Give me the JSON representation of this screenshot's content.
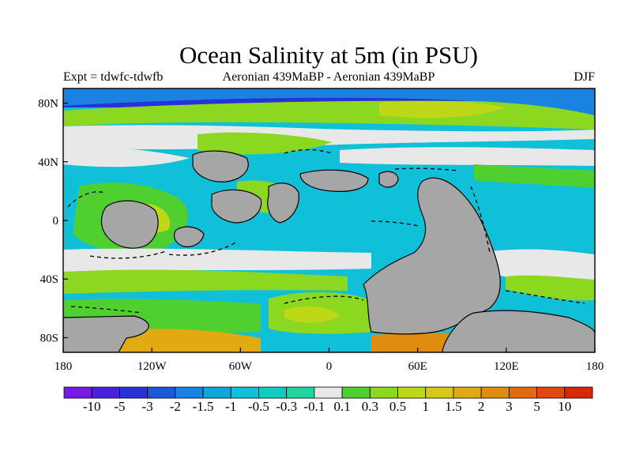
{
  "title": "Ocean Salinity at 5m (in PSU)",
  "subtitle_left": "Expt = tdwfc-tdwfb",
  "subtitle_center": "Aeronian 439MaBP - Aeronian 439MaBP",
  "subtitle_right": "DJF",
  "map": {
    "lon_range": [
      -180,
      180
    ],
    "lat_range": [
      -90,
      90
    ],
    "x_ticks": [
      {
        "value": -180,
        "label": "180"
      },
      {
        "value": -120,
        "label": "120W"
      },
      {
        "value": -60,
        "label": "60W"
      },
      {
        "value": 0,
        "label": "0"
      },
      {
        "value": 60,
        "label": "60E"
      },
      {
        "value": 120,
        "label": "120E"
      },
      {
        "value": 180,
        "label": "180"
      }
    ],
    "y_ticks": [
      {
        "value": 80,
        "label": "80N"
      },
      {
        "value": 40,
        "label": "40N"
      },
      {
        "value": 0,
        "label": "0"
      },
      {
        "value": -40,
        "label": "40S"
      },
      {
        "value": -80,
        "label": "80S"
      }
    ],
    "land_color": "#a6a6a6"
  },
  "colorbar": {
    "colors": [
      "#7a1ae6",
      "#4a20e0",
      "#2832d8",
      "#1a5ad8",
      "#1a82e0",
      "#10a6dc",
      "#10c0d8",
      "#10ccc0",
      "#22d4a0",
      "#e8e8e8",
      "#50d030",
      "#8cd820",
      "#bed818",
      "#d8c818",
      "#e0aa10",
      "#e08c10",
      "#e06a10",
      "#e04810",
      "#d82808"
    ],
    "labels": [
      "-10",
      "-5",
      "-3",
      "-2",
      "-1.5",
      "-1",
      "-0.5",
      "-0.3",
      "-0.1",
      "0.1",
      "0.3",
      "0.5",
      "1",
      "1.5",
      "2",
      "3",
      "5",
      "10"
    ]
  }
}
